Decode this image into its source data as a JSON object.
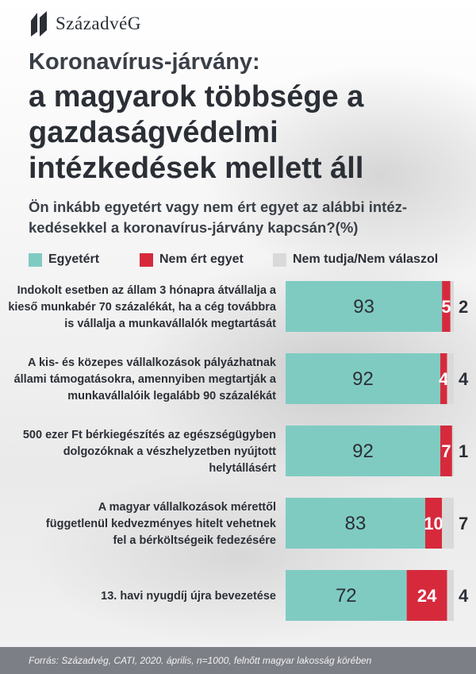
{
  "brand": "SzázadvéG",
  "title_line1": "Koronavírus-járvány:",
  "title_line2": "a magyarok többsége a gazdaságvédelmi intézkedések mellett áll",
  "question": "Ön inkább egyetért vagy nem ért egyet az alábbi intéz-kedésekkel a koronavírus-járvány kapcsán?(%)",
  "source": "Forrás: Századvég, CATI, 2020. április, n=1000, felnőtt magyar lakosság körében",
  "colors": {
    "agree": "#7fcbc2",
    "disagree": "#d62a3c",
    "dontknow": "#d9d9d9",
    "text": "#2b2f36"
  },
  "chart_data": {
    "type": "bar",
    "orientation": "horizontal",
    "stacked": true,
    "xlim": [
      0,
      100
    ],
    "legend_position": "top",
    "categories": [
      [
        "Indokolt esetben az állam 3 hónapra átvállalja a",
        "kieső munkabér 70 százalékát, ha a cég továbbra",
        "is vállalja a munkavállalók megtartását"
      ],
      [
        "A kis- és közepes vállalkozások pályázhatnak",
        "állami támogatásokra, amennyiben megtartják a",
        "munkavállalóik legalább 90 százalékát"
      ],
      [
        "500 ezer Ft bérkiegészítés az egészségügyben",
        "dolgozóknak a vészhelyzetben nyújtott",
        "helytállásért"
      ],
      [
        "A magyar vállalkozások mérettől",
        "függetlenül kedvezményes hitelt vehetnek",
        "fel a bérköltségeik fedezésére"
      ],
      [
        "13. havi nyugdíj újra bevezetése"
      ]
    ],
    "series": [
      {
        "name": "Egyetért",
        "color": "#7fcbc2",
        "values": [
          93,
          92,
          92,
          83,
          72
        ]
      },
      {
        "name": "Nem ért egyet",
        "color": "#d62a3c",
        "values": [
          5,
          4,
          7,
          10,
          24
        ]
      },
      {
        "name": "Nem tudja/Nem válaszol",
        "color": "#d9d9d9",
        "values": [
          2,
          4,
          1,
          7,
          4
        ]
      }
    ]
  }
}
